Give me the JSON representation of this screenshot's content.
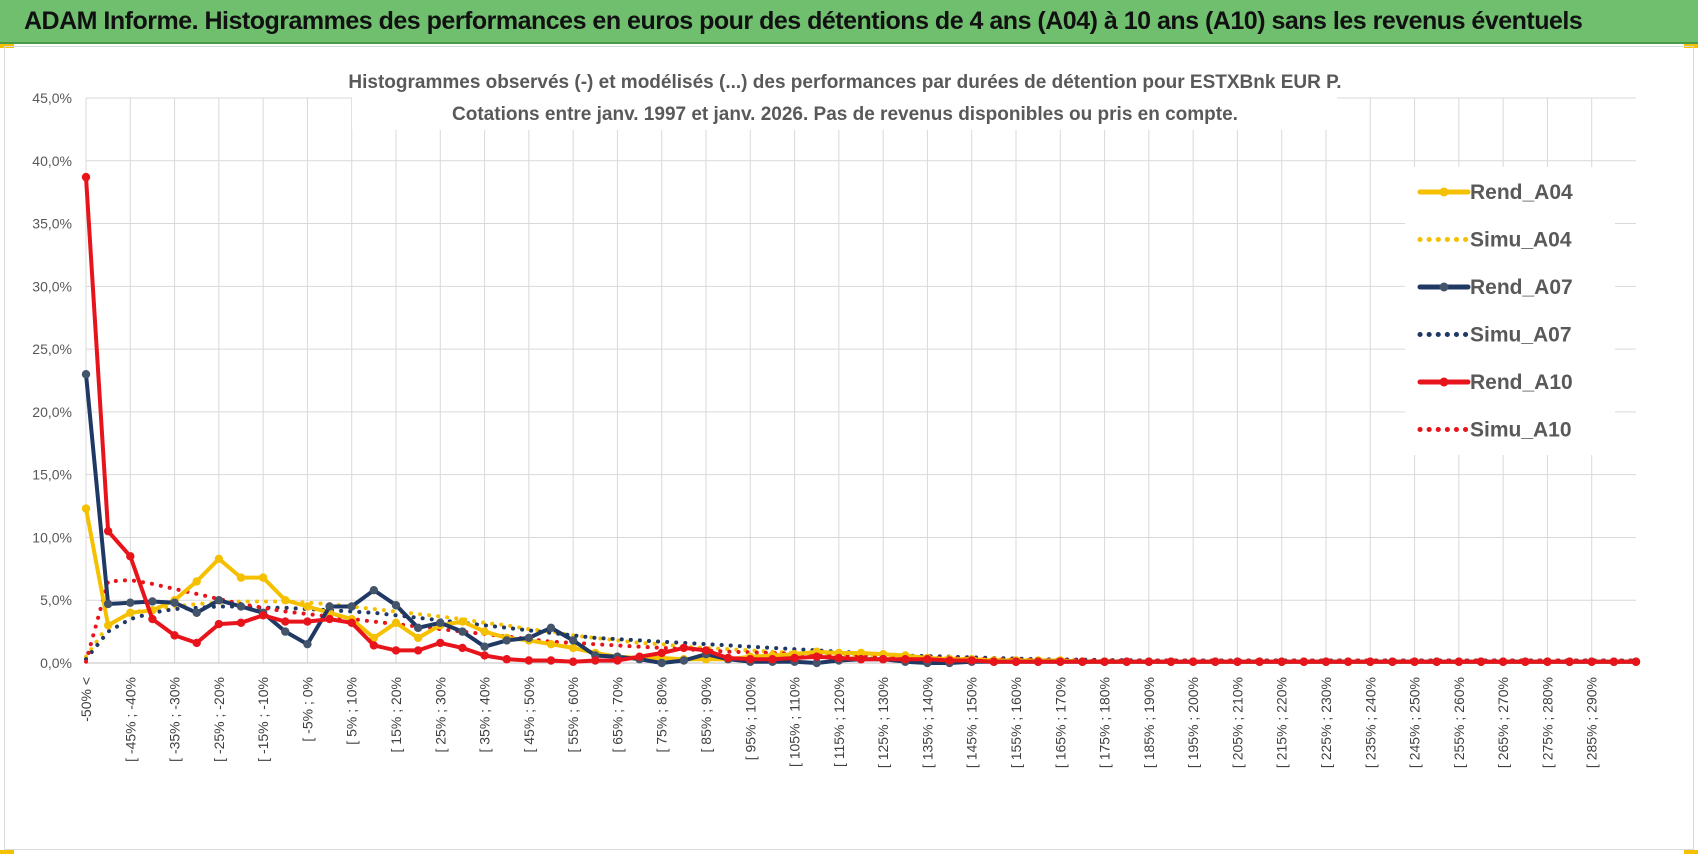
{
  "banner": {
    "title": "ADAM Informe. Histogrammes des performances en euros pour des détentions de 4 ans (A04) à 10 ans (A10) sans les revenus éventuels",
    "accent_color": "#6fbf6f"
  },
  "chart_data": {
    "type": "line",
    "title_line1": "Histogrammes observés (-) et modélisés (...) des performances par durées de détention pour ESTXBnk EUR P.",
    "title_line2": "Cotations entre janv. 1997 et janv. 2026. Pas de revenus disponibles ou pris en compte.",
    "xlabel": "",
    "ylabel": "",
    "ylim": [
      0,
      45
    ],
    "yticks": [
      "0,0%",
      "5,0%",
      "10,0%",
      "15,0%",
      "20,0%",
      "25,0%",
      "30,0%",
      "35,0%",
      "40,0%",
      "45,0%"
    ],
    "grid": true,
    "legend_position": "top-right",
    "x_labels_shown": [
      "-50% <",
      "[ -45% ; -40%",
      "[ -35% ; -30%",
      "[ -25% ; -20%",
      "[ -15% ; -10%",
      "[ -5% ; 0%",
      "[ 5% ; 10%",
      "[ 15% ; 20%",
      "[ 25% ; 30%",
      "[ 35% ; 40%",
      "[ 45% ; 50%",
      "[ 55% ; 60%",
      "[ 65% ; 70%",
      "[ 75% ; 80%",
      "[ 85% ; 90%",
      "[ 95% ; 100%",
      "[ 105% ; 110%",
      "[ 115% ; 120%",
      "[ 125% ; 130%",
      "[ 135% ; 140%",
      "[ 145% ; 150%",
      "[ 155% ; 160%",
      "[ 165% ; 170%",
      "[ 175% ; 180%",
      "[ 185% ; 190%",
      "[ 195% ; 200%",
      "[ 205% ; 210%",
      "[ 215% ; 220%",
      "[ 225% ; 230%",
      "[ 235% ; 240%",
      "[ 245% ; 250%",
      "[ 255% ; 260%",
      "[ 265% ; 270%",
      "[ 275% ; 280%",
      "[ 285% ; 290%"
    ],
    "n_points": 71,
    "series": [
      {
        "name": "Rend_A04",
        "style": "solid",
        "color": "#f5c000",
        "markers": true,
        "values": [
          12.3,
          3.0,
          4.0,
          4.2,
          5.0,
          6.5,
          8.3,
          6.8,
          6.8,
          5.0,
          4.5,
          4.0,
          3.5,
          2.0,
          3.2,
          2.0,
          3.0,
          3.3,
          2.5,
          2.0,
          1.8,
          1.5,
          1.2,
          0.8,
          0.5,
          0.4,
          0.4,
          0.3,
          0.3,
          0.3,
          0.5,
          0.6,
          0.7,
          0.9,
          0.8,
          0.8,
          0.7,
          0.6,
          0.4,
          0.3,
          0.3,
          0.2,
          0.2,
          0.2,
          0.2,
          0.1,
          0.1,
          0.1,
          0.1,
          0.1,
          0.1,
          0.1,
          0.1,
          0.1,
          0.1,
          0.1,
          0.1,
          0.1,
          0.1,
          0.1,
          0.1,
          0.1,
          0.1,
          0.1,
          0.1,
          0.1,
          0.1,
          0.1,
          0.1,
          0.1,
          0.1
        ]
      },
      {
        "name": "Simu_A04",
        "style": "dotted",
        "color": "#f5c000",
        "markers": false,
        "values": [
          0.5,
          3.0,
          4.0,
          4.3,
          4.5,
          4.7,
          4.8,
          4.9,
          4.9,
          4.9,
          4.8,
          4.7,
          4.5,
          4.3,
          4.1,
          3.9,
          3.7,
          3.5,
          3.2,
          3.0,
          2.7,
          2.5,
          2.2,
          2.0,
          1.8,
          1.6,
          1.5,
          1.3,
          1.2,
          1.1,
          1.0,
          0.9,
          0.8,
          0.7,
          0.6,
          0.55,
          0.5,
          0.45,
          0.4,
          0.35,
          0.3,
          0.28,
          0.25,
          0.22,
          0.2,
          0.18,
          0.16,
          0.14,
          0.12,
          0.1,
          0.1,
          0.1,
          0.1,
          0.1,
          0.1,
          0.1,
          0.1,
          0.1,
          0.1,
          0.1,
          0.1,
          0.1,
          0.1,
          0.1,
          0.1,
          0.1,
          0.1,
          0.1,
          0.1,
          0.1,
          0.1
        ]
      },
      {
        "name": "Rend_A07",
        "style": "solid",
        "color": "#1f3864",
        "markers": true,
        "values": [
          23.0,
          4.7,
          4.8,
          4.9,
          4.8,
          4.0,
          5.0,
          4.5,
          4.0,
          2.5,
          1.5,
          4.5,
          4.5,
          5.8,
          4.6,
          2.8,
          3.2,
          2.5,
          1.3,
          1.8,
          2.0,
          2.8,
          1.8,
          0.6,
          0.5,
          0.3,
          0.0,
          0.2,
          0.7,
          0.3,
          0.1,
          0.1,
          0.1,
          0.0,
          0.2,
          0.3,
          0.3,
          0.1,
          0.0,
          0.0,
          0.1,
          0.1,
          0.1,
          0.1,
          0.1,
          0.1,
          0.1,
          0.1,
          0.1,
          0.1,
          0.1,
          0.1,
          0.1,
          0.1,
          0.1,
          0.1,
          0.1,
          0.1,
          0.1,
          0.1,
          0.1,
          0.1,
          0.1,
          0.1,
          0.1,
          0.1,
          0.1,
          0.1,
          0.1,
          0.1,
          0.1
        ]
      },
      {
        "name": "Simu_A07",
        "style": "dotted",
        "color": "#1f3864",
        "markers": false,
        "values": [
          0.3,
          2.5,
          3.5,
          4.0,
          4.3,
          4.4,
          4.5,
          4.5,
          4.4,
          4.4,
          4.3,
          4.2,
          4.1,
          4.0,
          3.8,
          3.6,
          3.4,
          3.2,
          3.0,
          2.8,
          2.6,
          2.4,
          2.2,
          2.0,
          1.9,
          1.8,
          1.7,
          1.6,
          1.5,
          1.4,
          1.3,
          1.2,
          1.1,
          1.0,
          0.9,
          0.8,
          0.7,
          0.6,
          0.55,
          0.5,
          0.45,
          0.4,
          0.35,
          0.3,
          0.28,
          0.26,
          0.24,
          0.22,
          0.2,
          0.2,
          0.2,
          0.2,
          0.2,
          0.2,
          0.2,
          0.2,
          0.2,
          0.2,
          0.2,
          0.2,
          0.2,
          0.2,
          0.2,
          0.2,
          0.2,
          0.2,
          0.2,
          0.2,
          0.2,
          0.2,
          0.2
        ]
      },
      {
        "name": "Rend_A10",
        "style": "solid",
        "color": "#e8141c",
        "markers": true,
        "values": [
          38.7,
          10.5,
          8.5,
          3.5,
          2.2,
          1.6,
          3.1,
          3.2,
          3.8,
          3.3,
          3.3,
          3.5,
          3.2,
          1.4,
          1.0,
          1.0,
          1.6,
          1.2,
          0.6,
          0.3,
          0.2,
          0.2,
          0.1,
          0.2,
          0.2,
          0.5,
          0.8,
          1.2,
          1.0,
          0.4,
          0.3,
          0.3,
          0.4,
          0.5,
          0.4,
          0.3,
          0.3,
          0.3,
          0.3,
          0.2,
          0.2,
          0.1,
          0.1,
          0.1,
          0.1,
          0.1,
          0.1,
          0.1,
          0.1,
          0.1,
          0.1,
          0.1,
          0.1,
          0.1,
          0.1,
          0.1,
          0.1,
          0.1,
          0.1,
          0.1,
          0.1,
          0.1,
          0.1,
          0.1,
          0.1,
          0.1,
          0.1,
          0.1,
          0.1,
          0.1,
          0.1
        ]
      },
      {
        "name": "Simu_A10",
        "style": "dotted",
        "color": "#e8141c",
        "markers": false,
        "values": [
          0.1,
          6.5,
          6.6,
          6.3,
          5.9,
          5.5,
          5.1,
          4.7,
          4.4,
          4.1,
          3.9,
          3.7,
          3.5,
          3.3,
          3.1,
          2.9,
          2.7,
          2.5,
          2.3,
          2.1,
          1.9,
          1.7,
          1.6,
          1.5,
          1.4,
          1.3,
          1.2,
          1.1,
          1.0,
          0.9,
          0.85,
          0.8,
          0.75,
          0.7,
          0.65,
          0.6,
          0.55,
          0.5,
          0.45,
          0.4,
          0.35,
          0.3,
          0.28,
          0.26,
          0.24,
          0.22,
          0.2,
          0.2,
          0.2,
          0.2,
          0.2,
          0.2,
          0.2,
          0.2,
          0.2,
          0.2,
          0.2,
          0.2,
          0.2,
          0.2,
          0.2,
          0.2,
          0.2,
          0.2,
          0.2,
          0.2,
          0.2,
          0.2,
          0.2,
          0.2,
          0.2
        ]
      }
    ]
  }
}
